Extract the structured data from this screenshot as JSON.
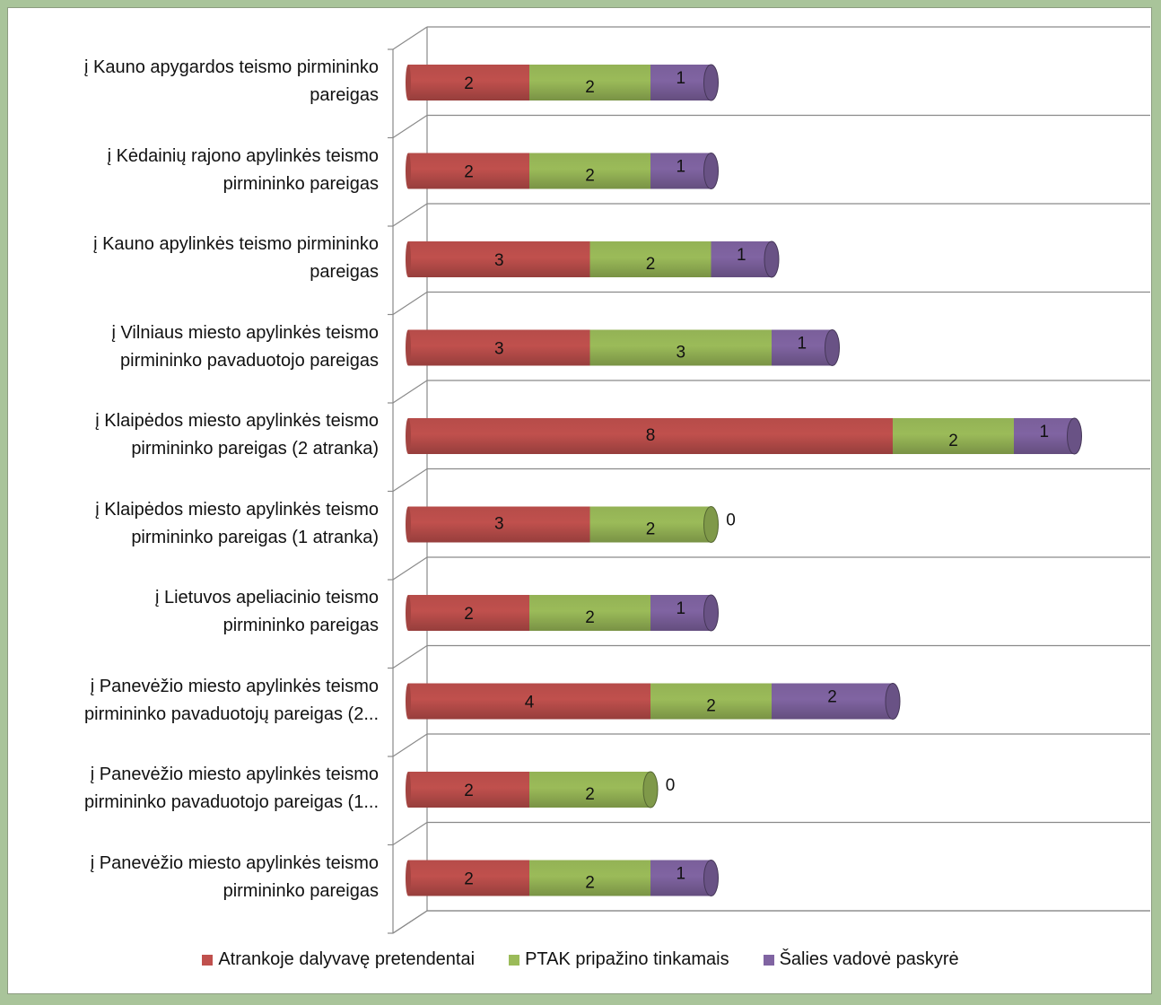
{
  "chart_data": {
    "type": "bar",
    "orientation": "horizontal",
    "stacked": true,
    "style": "3d-cylinder",
    "grid": true,
    "legend_position": "bottom",
    "xlim": [
      0,
      14
    ],
    "categories": [
      [
        "į Kauno apygardos teismo pirmininko",
        "pareigas"
      ],
      [
        "į Kėdainių rajono apylinkės teismo",
        "pirmininko pareigas"
      ],
      [
        "į Kauno apylinkės teismo pirmininko",
        "pareigas"
      ],
      [
        "į Vilniaus miesto apylinkės teismo",
        "pirmininko pavaduotojo pareigas"
      ],
      [
        "į Klaipėdos miesto apylinkės teismo",
        "pirmininko pareigas (2 atranka)"
      ],
      [
        "į Klaipėdos miesto apylinkės teismo",
        "pirmininko pareigas (1 atranka)"
      ],
      [
        "į Lietuvos apeliacinio teismo",
        "pirmininko pareigas"
      ],
      [
        "į Panevėžio miesto apylinkės teismo",
        "pirmininko pavaduotojų pareigas (2..."
      ],
      [
        "į Panevėžio miesto apylinkės teismo",
        "pirmininko pavaduotojo pareigas (1..."
      ],
      [
        "į Panevėžio miesto apylinkės teismo",
        "pirmininko pareigas"
      ]
    ],
    "series": [
      {
        "name": "Atrankoje dalyvavę pretendentai",
        "color": "#c0504d",
        "values": [
          2,
          2,
          3,
          3,
          8,
          3,
          2,
          4,
          2,
          2
        ]
      },
      {
        "name": "PTAK pripažino tinkamais",
        "color": "#9bbb59",
        "values": [
          2,
          2,
          2,
          3,
          2,
          2,
          2,
          2,
          2,
          2
        ]
      },
      {
        "name": "Šalies vadovė paskyrė",
        "color": "#8064a2",
        "values": [
          1,
          1,
          1,
          1,
          1,
          0,
          1,
          2,
          0,
          1
        ]
      }
    ]
  }
}
